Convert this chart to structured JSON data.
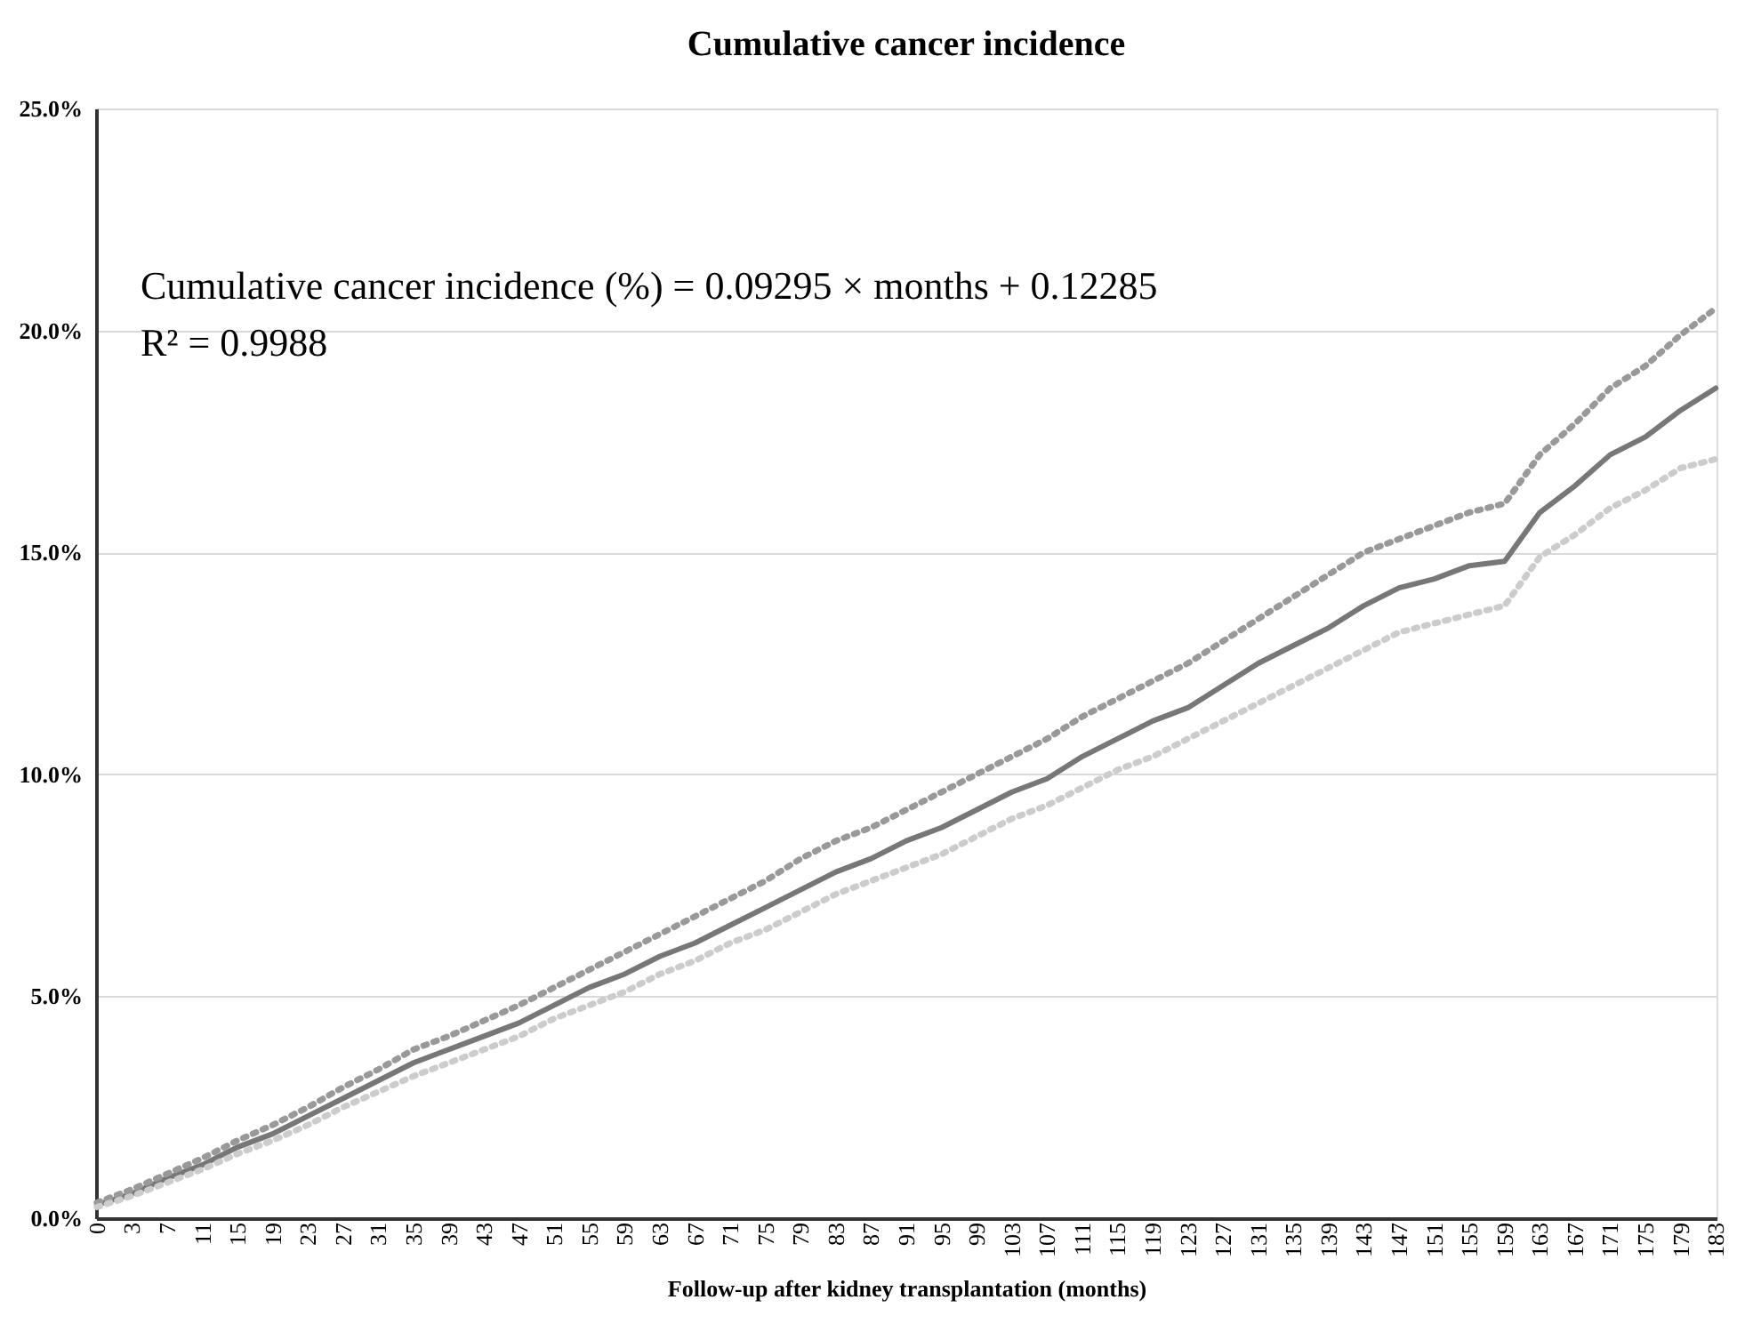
{
  "chart_data": {
    "type": "line",
    "title": "Cumulative cancer incidence",
    "xlabel": "Follow-up after kidney transplantation (months)",
    "categories": [
      "0",
      "3",
      "7",
      "11",
      "15",
      "19",
      "23",
      "27",
      "31",
      "35",
      "39",
      "43",
      "47",
      "51",
      "55",
      "59",
      "63",
      "67",
      "71",
      "75",
      "79",
      "83",
      "87",
      "91",
      "95",
      "99",
      "103",
      "107",
      "111",
      "115",
      "119",
      "123",
      "127",
      "131",
      "135",
      "139",
      "143",
      "147",
      "151",
      "155",
      "159",
      "163",
      "167",
      "171",
      "175",
      "179",
      "183"
    ],
    "series": [
      {
        "color": "#777777",
        "line_style": "solid",
        "values": [
          0.3,
          0.55,
          0.9,
          1.2,
          1.6,
          1.9,
          2.3,
          2.7,
          3.1,
          3.5,
          3.8,
          4.1,
          4.4,
          4.8,
          5.2,
          5.5,
          5.9,
          6.2,
          6.6,
          7.0,
          7.4,
          7.8,
          8.1,
          8.5,
          8.8,
          9.2,
          9.6,
          9.9,
          10.4,
          10.8,
          11.2,
          11.5,
          12.0,
          12.5,
          12.9,
          13.3,
          13.8,
          14.2,
          14.4,
          14.7,
          14.8,
          15.9,
          16.5,
          17.2,
          17.6,
          18.2,
          18.7
        ]
      },
      {
        "color": "#999999",
        "line_style": "dotted",
        "values": [
          0.35,
          0.65,
          1.0,
          1.35,
          1.75,
          2.1,
          2.5,
          2.95,
          3.35,
          3.8,
          4.1,
          4.45,
          4.8,
          5.2,
          5.6,
          6.0,
          6.4,
          6.8,
          7.2,
          7.6,
          8.1,
          8.5,
          8.8,
          9.2,
          9.6,
          10.0,
          10.4,
          10.8,
          11.3,
          11.7,
          12.1,
          12.5,
          13.0,
          13.5,
          14.0,
          14.5,
          15.0,
          15.3,
          15.6,
          15.9,
          16.1,
          17.2,
          17.9,
          18.7,
          19.2,
          19.9,
          20.5
        ]
      },
      {
        "color": "#cccccc",
        "line_style": "dotted",
        "values": [
          0.25,
          0.5,
          0.8,
          1.1,
          1.45,
          1.75,
          2.1,
          2.5,
          2.85,
          3.2,
          3.5,
          3.8,
          4.1,
          4.5,
          4.8,
          5.1,
          5.5,
          5.8,
          6.2,
          6.5,
          6.9,
          7.3,
          7.6,
          7.9,
          8.2,
          8.6,
          9.0,
          9.3,
          9.7,
          10.1,
          10.4,
          10.8,
          11.2,
          11.6,
          12.0,
          12.4,
          12.8,
          13.2,
          13.4,
          13.6,
          13.8,
          14.9,
          15.4,
          16.0,
          16.4,
          16.9,
          17.1
        ]
      }
    ],
    "ylim": [
      0,
      25
    ],
    "yticks": [
      {
        "value": 0,
        "label": "0.0%"
      },
      {
        "value": 5,
        "label": "5.0%"
      },
      {
        "value": 10,
        "label": "10.0%"
      },
      {
        "value": 15,
        "label": "15.0%"
      },
      {
        "value": 20,
        "label": "20.0%"
      },
      {
        "value": 25,
        "label": "25.0%"
      }
    ],
    "grid": "y",
    "marker": "none",
    "annotations": [
      "Cumulative cancer incidence (%) = 0.09295  ×  months + 0.12285",
      "R² = 0.9988"
    ]
  }
}
